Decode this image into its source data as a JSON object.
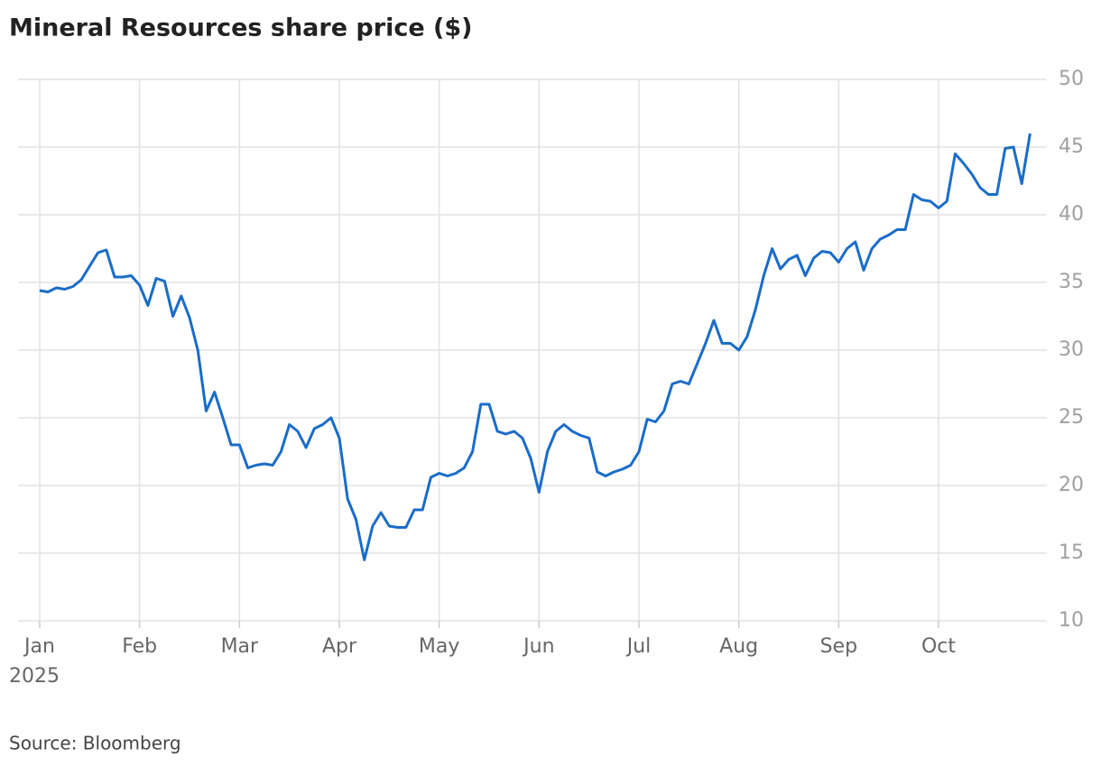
{
  "chart_data": {
    "type": "line",
    "title": "Mineral Resources share price ($)",
    "source": "Source: Bloomberg",
    "year_label": "2025",
    "categories": [
      "Jan",
      null,
      null,
      null,
      null,
      null,
      null,
      null,
      null,
      null,
      null,
      null,
      "Feb",
      null,
      null,
      null,
      null,
      null,
      null,
      null,
      null,
      null,
      null,
      null,
      "Mar",
      null,
      null,
      null,
      null,
      null,
      null,
      null,
      null,
      null,
      null,
      null,
      "Apr",
      null,
      null,
      null,
      null,
      null,
      null,
      null,
      null,
      null,
      null,
      null,
      "May",
      null,
      null,
      null,
      null,
      null,
      null,
      null,
      null,
      null,
      null,
      null,
      "Jun",
      null,
      null,
      null,
      null,
      null,
      null,
      null,
      null,
      null,
      null,
      null,
      "Jul",
      null,
      null,
      null,
      null,
      null,
      null,
      null,
      null,
      null,
      null,
      null,
      "Aug",
      null,
      null,
      null,
      null,
      null,
      null,
      null,
      null,
      null,
      null,
      null,
      "Sep",
      null,
      null,
      null,
      null,
      null,
      null,
      null,
      null,
      null,
      null,
      null,
      "Oct",
      null,
      null,
      null,
      null,
      null,
      null,
      null,
      null,
      null,
      null,
      null
    ],
    "values": [
      34.4,
      34.3,
      34.6,
      34.5,
      34.7,
      35.2,
      36.2,
      37.2,
      37.4,
      35.4,
      35.4,
      35.5,
      34.8,
      33.3,
      35.3,
      35.1,
      32.5,
      34.0,
      32.4,
      30.0,
      25.5,
      26.9,
      25.0,
      23.0,
      23.0,
      21.3,
      21.5,
      21.6,
      21.5,
      22.5,
      24.5,
      24.0,
      22.8,
      24.2,
      24.5,
      25.0,
      23.5,
      19.0,
      17.5,
      14.5,
      17.0,
      18.0,
      17.0,
      16.9,
      16.9,
      18.2,
      18.2,
      20.6,
      20.9,
      20.7,
      20.9,
      21.3,
      22.5,
      26.0,
      26.0,
      24.0,
      23.8,
      24.0,
      23.5,
      22.0,
      19.5,
      22.5,
      24.0,
      24.5,
      24.0,
      23.7,
      23.5,
      21.0,
      20.7,
      21.0,
      21.2,
      21.5,
      22.5,
      24.9,
      24.7,
      25.5,
      27.5,
      27.7,
      27.5,
      29.0,
      30.5,
      32.2,
      30.5,
      30.5,
      30.0,
      31.0,
      33.0,
      35.5,
      37.5,
      36.0,
      36.7,
      37.0,
      35.5,
      36.8,
      37.3,
      37.2,
      36.5,
      37.5,
      38.0,
      35.9,
      37.5,
      38.2,
      38.5,
      38.9,
      38.9,
      41.5,
      41.1,
      41.0,
      40.5,
      41.0,
      44.5,
      43.8,
      43.0,
      42.0,
      41.5,
      41.5,
      44.9,
      45.0,
      42.3,
      46.0
    ],
    "color": "#1a6cc8",
    "ylim": [
      10,
      50
    ],
    "yticks": [
      10,
      15,
      20,
      25,
      30,
      35,
      40,
      45,
      50
    ],
    "grid": true
  }
}
